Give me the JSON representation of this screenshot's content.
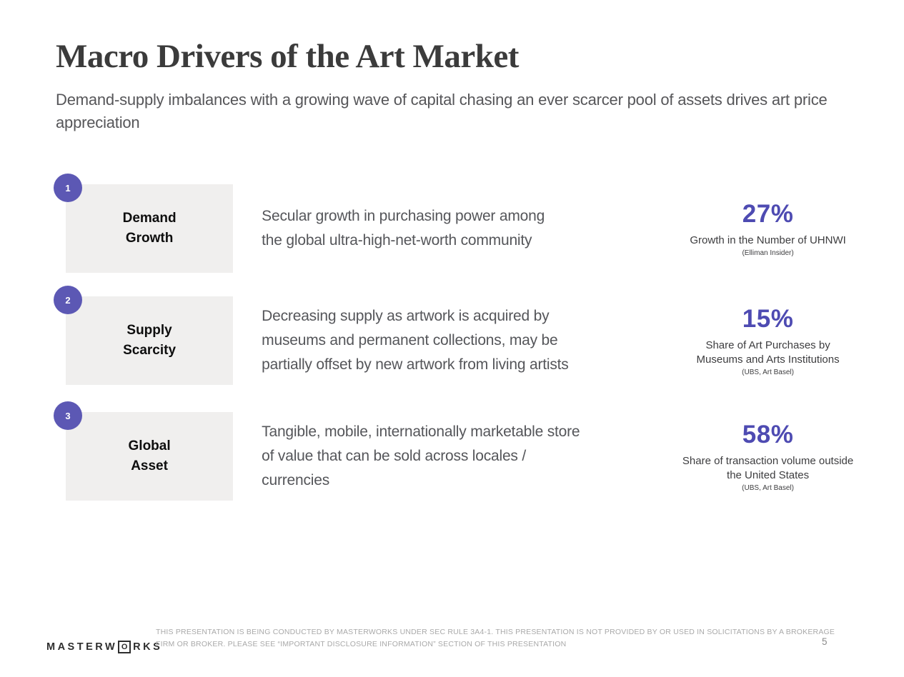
{
  "slide": {
    "title": "Macro Drivers of the Art Market",
    "subtitle": "Demand-supply imbalances with a growing wave of capital chasing an ever scarcer pool of assets drives art price appreciation"
  },
  "drivers": [
    {
      "number": "1",
      "label_lines": [
        "Demand",
        "Growth"
      ],
      "description_lines": [
        "Secular growth in purchasing power among",
        "the global ultra-high-net-worth community"
      ],
      "stat_value": "27%",
      "stat_caption_lines": [
        "Growth in the Number of UHNWI"
      ],
      "stat_source": "(Elliman Insider)"
    },
    {
      "number": "2",
      "label_lines": [
        "Supply",
        "Scarcity"
      ],
      "description_lines": [
        "Decreasing supply as artwork is acquired by",
        "museums and permanent collections, may be",
        "partially offset by new artwork from living artists"
      ],
      "stat_value": "15%",
      "stat_caption_lines": [
        "Share of Art Purchases by",
        "Museums and Arts Institutions"
      ],
      "stat_source": "(UBS, Art Basel)"
    },
    {
      "number": "3",
      "label_lines": [
        "Global",
        "Asset"
      ],
      "description_lines": [
        "Tangible, mobile, internationally marketable store",
        "of value that can be sold across locales /",
        "currencies"
      ],
      "stat_value": "58%",
      "stat_caption_lines": [
        "Share of transaction volume outside",
        "the United States"
      ],
      "stat_source": "(UBS, Art Basel)"
    }
  ],
  "footer": {
    "logo_prefix": "MASTERW",
    "logo_o": "O",
    "logo_suffix": "RKS",
    "disclosure_lines": [
      "THIS PRESENTATION  IS BEING CONDUCTED BY MASTERWORKS UNDER SEC RULE 3A4-1. THIS PRESENTATION  IS NOT PROVIDED BY OR USED IN SOLICITATIONS BY A BROKERAGE",
      "FIRM OR BROKER. PLEASE SEE “IMPORTANT DISCLOSURE INFORMATION” SECTION OF THIS PRESENTATION"
    ],
    "page_number": "5"
  },
  "colors": {
    "accent_purple": "#4e4bb2",
    "badge_purple": "#5c58b4",
    "box_gray": "#f0efee",
    "title_gray": "#3b3b3b",
    "body_gray": "#55565a",
    "footer_gray": "#a9a9a9"
  }
}
